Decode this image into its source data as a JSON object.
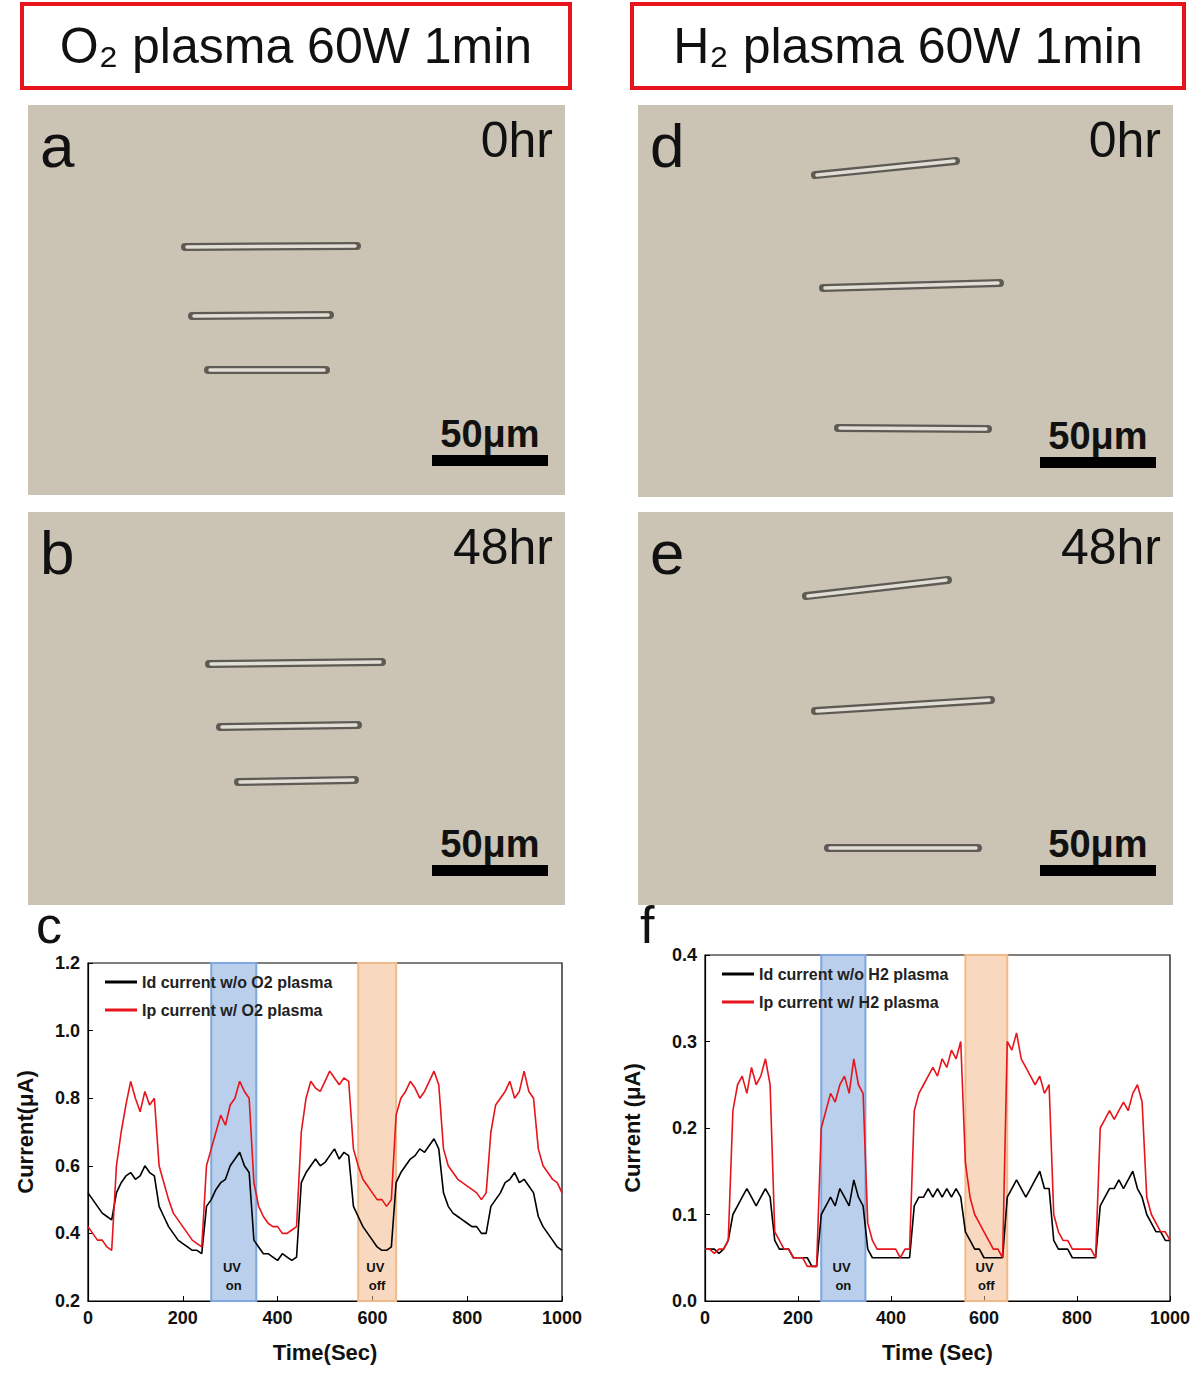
{
  "headers": [
    "O₂ plasma 60W 1min",
    "H₂ plasma 60W 1min"
  ],
  "panels": [
    {
      "letter": "a",
      "time": "0hr",
      "scale_bar": "50μm"
    },
    {
      "letter": "b",
      "time": "48hr",
      "scale_bar": "50μm"
    },
    {
      "letter": "d",
      "time": "0hr",
      "scale_bar": "50μm"
    },
    {
      "letter": "e",
      "time": "48hr",
      "scale_bar": "50μm"
    }
  ],
  "chart_data": [
    {
      "letter": "c",
      "type": "line",
      "x_label": "Time(Sec)",
      "y_label": "Current(μA)",
      "x": [
        0,
        10,
        20,
        30,
        40,
        50,
        60,
        70,
        80,
        90,
        100,
        110,
        120,
        130,
        140,
        150,
        160,
        170,
        180,
        190,
        200,
        210,
        220,
        230,
        240,
        250,
        260,
        270,
        280,
        290,
        300,
        310,
        320,
        330,
        340,
        350,
        360,
        370,
        380,
        390,
        400,
        410,
        420,
        430,
        440,
        450,
        460,
        470,
        480,
        490,
        500,
        510,
        520,
        530,
        540,
        550,
        560,
        570,
        580,
        590,
        600,
        610,
        620,
        630,
        640,
        650,
        660,
        670,
        680,
        690,
        700,
        710,
        720,
        730,
        740,
        750,
        760,
        770,
        780,
        790,
        800,
        810,
        820,
        830,
        840,
        850,
        860,
        870,
        880,
        890,
        900,
        910,
        920,
        930,
        940,
        950,
        960,
        970,
        980,
        990,
        1000
      ],
      "xlim": [
        0,
        1000
      ],
      "xticks": [
        0,
        200,
        400,
        600,
        800,
        1000
      ],
      "ylim": [
        0.2,
        1.2
      ],
      "yticks": [
        0.2,
        0.4,
        0.6,
        0.8,
        {
          "value": 1,
          "label": "1.0"
        },
        1.2
      ],
      "legend": "upper left",
      "series": [
        {
          "name": "Id current w/o O2 plasma",
          "color": "#000000",
          "values": [
            0.52,
            0.5,
            0.48,
            0.46,
            0.45,
            0.44,
            0.52,
            0.55,
            0.57,
            0.58,
            0.56,
            0.57,
            0.6,
            0.58,
            0.57,
            0.48,
            0.45,
            0.42,
            0.4,
            0.38,
            0.37,
            0.36,
            0.35,
            0.35,
            0.34,
            0.48,
            0.5,
            0.53,
            0.55,
            0.56,
            0.6,
            0.62,
            0.64,
            0.6,
            0.58,
            0.38,
            0.36,
            0.34,
            0.34,
            0.33,
            0.32,
            0.34,
            0.33,
            0.32,
            0.33,
            0.55,
            0.58,
            0.6,
            0.62,
            0.6,
            0.61,
            0.63,
            0.65,
            0.62,
            0.64,
            0.63,
            0.48,
            0.45,
            0.42,
            0.4,
            0.38,
            0.36,
            0.35,
            0.35,
            0.36,
            0.55,
            0.58,
            0.6,
            0.62,
            0.63,
            0.65,
            0.64,
            0.66,
            0.68,
            0.65,
            0.52,
            0.48,
            0.46,
            0.45,
            0.44,
            0.43,
            0.42,
            0.42,
            0.4,
            0.4,
            0.48,
            0.5,
            0.52,
            0.55,
            0.56,
            0.58,
            0.55,
            0.56,
            0.54,
            0.52,
            0.45,
            0.42,
            0.4,
            0.38,
            0.36,
            0.35
          ]
        },
        {
          "name": "Ip current w/ O2 plasma",
          "color": "#e8141b",
          "values": [
            0.42,
            0.4,
            0.38,
            0.38,
            0.36,
            0.35,
            0.6,
            0.7,
            0.78,
            0.85,
            0.8,
            0.76,
            0.82,
            0.78,
            0.8,
            0.6,
            0.55,
            0.5,
            0.46,
            0.44,
            0.42,
            0.4,
            0.38,
            0.37,
            0.36,
            0.6,
            0.65,
            0.7,
            0.75,
            0.72,
            0.78,
            0.8,
            0.85,
            0.82,
            0.8,
            0.55,
            0.48,
            0.45,
            0.43,
            0.42,
            0.42,
            0.4,
            0.4,
            0.41,
            0.42,
            0.7,
            0.8,
            0.85,
            0.83,
            0.82,
            0.85,
            0.88,
            0.86,
            0.84,
            0.86,
            0.85,
            0.65,
            0.6,
            0.56,
            0.54,
            0.52,
            0.5,
            0.5,
            0.48,
            0.5,
            0.75,
            0.8,
            0.82,
            0.85,
            0.83,
            0.8,
            0.82,
            0.85,
            0.88,
            0.84,
            0.65,
            0.6,
            0.58,
            0.56,
            0.55,
            0.54,
            0.53,
            0.52,
            0.5,
            0.52,
            0.7,
            0.78,
            0.8,
            0.82,
            0.85,
            0.8,
            0.82,
            0.88,
            0.82,
            0.8,
            0.65,
            0.6,
            0.58,
            0.56,
            0.55,
            0.52
          ]
        }
      ],
      "annotations": [
        {
          "text": "UV on",
          "x_start": 260,
          "x_end": 355,
          "color": "#7fa7dd"
        },
        {
          "text": "UV off",
          "x_start": 570,
          "x_end": 650,
          "color": "#f2b98a"
        }
      ]
    },
    {
      "letter": "f",
      "type": "line",
      "x_label": "Time (Sec)",
      "y_label": "Current (μA)",
      "x": [
        0,
        10,
        20,
        30,
        40,
        50,
        60,
        70,
        80,
        90,
        100,
        110,
        120,
        130,
        140,
        150,
        160,
        170,
        180,
        190,
        200,
        210,
        220,
        230,
        240,
        250,
        260,
        270,
        280,
        290,
        300,
        310,
        320,
        330,
        340,
        350,
        360,
        370,
        380,
        390,
        400,
        410,
        420,
        430,
        440,
        450,
        460,
        470,
        480,
        490,
        500,
        510,
        520,
        530,
        540,
        550,
        560,
        570,
        580,
        590,
        600,
        610,
        620,
        630,
        640,
        650,
        660,
        670,
        680,
        690,
        700,
        710,
        720,
        730,
        740,
        750,
        760,
        770,
        780,
        790,
        800,
        810,
        820,
        830,
        840,
        850,
        860,
        870,
        880,
        890,
        900,
        910,
        920,
        930,
        940,
        950,
        960,
        970,
        980,
        990,
        1000
      ],
      "xlim": [
        0,
        1000
      ],
      "xticks": [
        0,
        200,
        400,
        600,
        800,
        1000
      ],
      "ylim": [
        0,
        0.4
      ],
      "yticks": [
        {
          "value": 0,
          "label": "0.0"
        },
        0.1,
        0.2,
        0.3,
        0.4
      ],
      "legend": "upper left",
      "series": [
        {
          "name": "Id current w/o H2 plasma",
          "color": "#000000",
          "values": [
            0.06,
            0.06,
            0.06,
            0.055,
            0.06,
            0.07,
            0.1,
            0.11,
            0.12,
            0.13,
            0.12,
            0.11,
            0.12,
            0.13,
            0.12,
            0.07,
            0.06,
            0.06,
            0.06,
            0.05,
            0.05,
            0.05,
            0.05,
            0.04,
            0.04,
            0.1,
            0.11,
            0.12,
            0.11,
            0.13,
            0.12,
            0.11,
            0.14,
            0.12,
            0.11,
            0.06,
            0.05,
            0.05,
            0.05,
            0.05,
            0.05,
            0.05,
            0.05,
            0.05,
            0.05,
            0.11,
            0.12,
            0.12,
            0.13,
            0.12,
            0.13,
            0.12,
            0.13,
            0.12,
            0.13,
            0.12,
            0.08,
            0.07,
            0.06,
            0.06,
            0.05,
            0.05,
            0.05,
            0.05,
            0.05,
            0.12,
            0.13,
            0.14,
            0.13,
            0.12,
            0.13,
            0.14,
            0.15,
            0.13,
            0.13,
            0.07,
            0.06,
            0.06,
            0.06,
            0.05,
            0.05,
            0.05,
            0.05,
            0.05,
            0.05,
            0.11,
            0.12,
            0.13,
            0.13,
            0.14,
            0.13,
            0.14,
            0.15,
            0.13,
            0.12,
            0.1,
            0.09,
            0.08,
            0.08,
            0.07,
            0.07
          ]
        },
        {
          "name": "Ip current w/ H2 plasma",
          "color": "#e8141b",
          "values": [
            0.06,
            0.06,
            0.055,
            0.06,
            0.06,
            0.07,
            0.22,
            0.25,
            0.26,
            0.24,
            0.27,
            0.25,
            0.26,
            0.28,
            0.25,
            0.08,
            0.07,
            0.06,
            0.06,
            0.05,
            0.05,
            0.05,
            0.04,
            0.04,
            0.04,
            0.2,
            0.22,
            0.24,
            0.23,
            0.25,
            0.26,
            0.24,
            0.28,
            0.25,
            0.24,
            0.09,
            0.07,
            0.06,
            0.06,
            0.06,
            0.06,
            0.06,
            0.05,
            0.06,
            0.06,
            0.22,
            0.24,
            0.25,
            0.26,
            0.27,
            0.26,
            0.28,
            0.27,
            0.29,
            0.28,
            0.3,
            0.16,
            0.12,
            0.1,
            0.09,
            0.08,
            0.07,
            0.06,
            0.06,
            0.05,
            0.3,
            0.29,
            0.31,
            0.28,
            0.27,
            0.26,
            0.25,
            0.26,
            0.24,
            0.25,
            0.1,
            0.08,
            0.07,
            0.07,
            0.06,
            0.06,
            0.06,
            0.06,
            0.06,
            0.05,
            0.2,
            0.21,
            0.22,
            0.21,
            0.22,
            0.23,
            0.22,
            0.24,
            0.25,
            0.23,
            0.12,
            0.1,
            0.09,
            0.08,
            0.08,
            0.07
          ]
        }
      ],
      "annotations": [
        {
          "text": "UV on",
          "x_start": 250,
          "x_end": 345,
          "color": "#7fa7dd"
        },
        {
          "text": "UV off",
          "x_start": 560,
          "x_end": 650,
          "color": "#f2b98a"
        }
      ]
    }
  ]
}
